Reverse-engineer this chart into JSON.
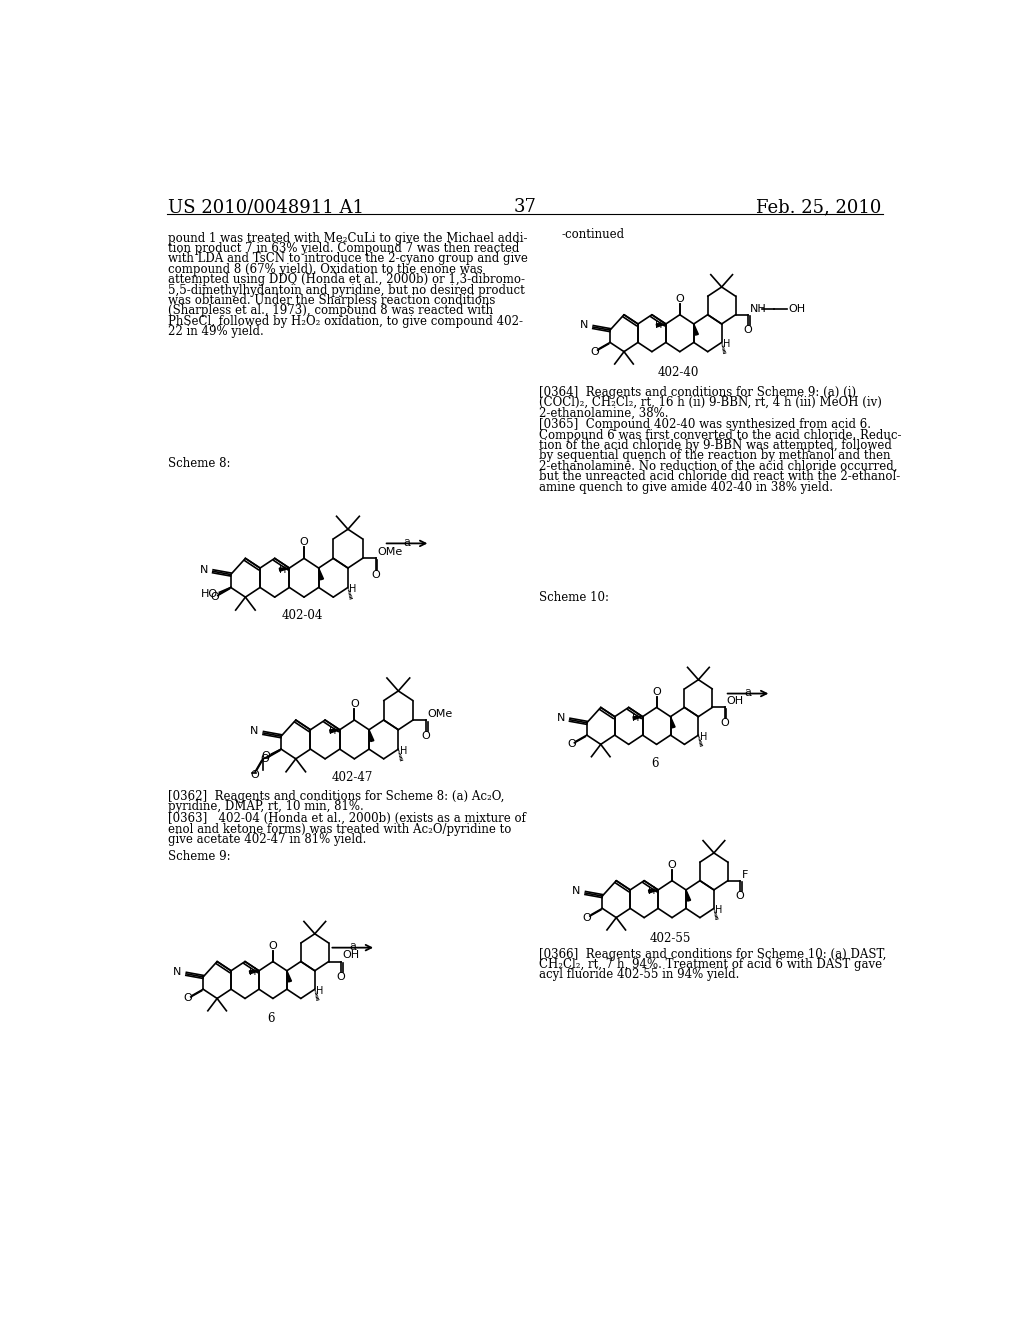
{
  "page_number": "37",
  "patent_number": "US 2010/0048911 A1",
  "patent_date": "Feb. 25, 2010",
  "background_color": "#ffffff",
  "text_color": "#000000",
  "intro_text": "pound 1 was treated with Me₂CuLi to give the Michael addi-\ntion product 7 in 63% yield. Compound 7 was then reacted\nwith LDA and TsCN to introduce the 2-cyano group and give\ncompound 8 (67% yield). Oxidation to the enone was\nattempted using DDQ (Honda et al., 2000b) or 1,3-dibromo-\n5,5-dimethylhydantoin and pyridine, but no desired product\nwas obtained. Under the Sharpless reaction conditions\n(Sharpless et al., 1973), compound 8 was reacted with\nPhSeCl, followed by H₂O₂ oxidation, to give compound 402-\n22 in 49% yield.",
  "scheme8_label": "Scheme 8:",
  "compound_402_04_label": "402-04",
  "compound_402_47_label": "402-47",
  "scheme8_paragraph1": "[0362]  Reagents and conditions for Scheme 8: (a) Ac₂O,\npyridine, DMAP, rt, 10 min, 81%.",
  "scheme8_paragraph2": "[0363]   402-04 (Honda et al., 2000b) (exists as a mixture of\nenol and ketone forms) was treated with Ac₂O/pyridine to\ngive acetate 402-47 in 81% yield.",
  "scheme9_label": "Scheme 9:",
  "compound_6a_label": "6",
  "continued_label": "-continued",
  "compound_402_40_label": "402-40",
  "scheme9_paragraph2_right": "[0364]  Reagents and conditions for Scheme 9: (a) (i)\n(COCl)₂, CH₂Cl₂, rt, 16 h (ii) 9-BBN, rt, 4 h (iii) MeOH (iv)\n2-ethanolamine, 38%.",
  "scheme9_paragraph3_right": "[0365]  Compound 402-40 was synthesized from acid 6.\nCompound 6 was first converted to the acid chloride. Reduc-\ntion of the acid chloride by 9-BBN was attempted, followed\nby sequential quench of the reaction by methanol and then\n2-ethanolamine. No reduction of the acid chloride occurred,\nbut the unreacted acid chloride did react with the 2-ethanol-\namine quench to give amide 402-40 in 38% yield.",
  "scheme10_label": "Scheme 10:",
  "compound_6b_label": "6",
  "compound_402_55_label": "402-55",
  "scheme10_paragraph": "[0366]  Reagents and conditions for Scheme 10: (a) DAST,\nCH₂Cl₂, rt, 7 h, 94%. Treatment of acid 6 with DAST gave\nacyl fluoride 402-55 in 94% yield.",
  "arrow_label": "a"
}
